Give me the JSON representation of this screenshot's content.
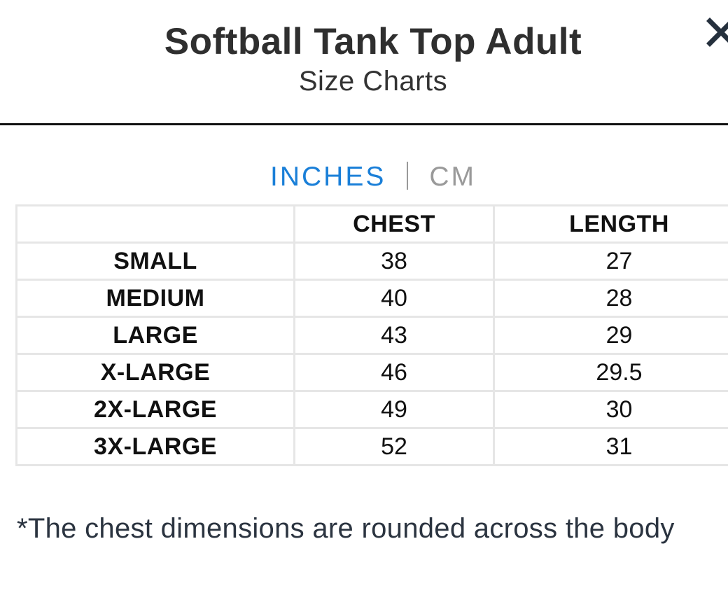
{
  "header": {
    "title": "Softball Tank Top Adult",
    "subtitle": "Size Charts",
    "close_icon": "close-icon"
  },
  "units": {
    "active": "INCHES",
    "inactive": "CM",
    "active_color": "#1a7fd8",
    "inactive_color": "#9a9a9a"
  },
  "table": {
    "columns": [
      "",
      "CHEST",
      "LENGTH"
    ],
    "rows": [
      {
        "size": "SMALL",
        "chest": "38",
        "length": "27"
      },
      {
        "size": "MEDIUM",
        "chest": "40",
        "length": "28"
      },
      {
        "size": "LARGE",
        "chest": "43",
        "length": "29"
      },
      {
        "size": "X-LARGE",
        "chest": "46",
        "length": "29.5"
      },
      {
        "size": "2X-LARGE",
        "chest": "49",
        "length": "30"
      },
      {
        "size": "3X-LARGE",
        "chest": "52",
        "length": "31"
      }
    ]
  },
  "footnote": "*The chest dimensions are rounded across the body"
}
